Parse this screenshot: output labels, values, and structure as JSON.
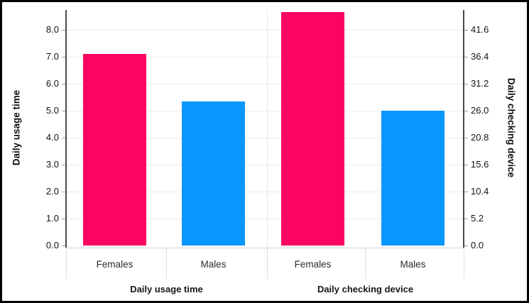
{
  "chart_data": {
    "type": "bar",
    "title": "",
    "legend": "none",
    "grid": true,
    "groups": [
      {
        "label": "Daily usage time",
        "axis": "left",
        "categories": [
          "Females",
          "Males"
        ],
        "values": [
          7.1,
          5.35
        ]
      },
      {
        "label": "Daily checking device",
        "axis": "right",
        "categories": [
          "Females",
          "Males"
        ],
        "values": [
          45,
          26
        ]
      }
    ],
    "left_axis": {
      "title": "Daily usage time",
      "ticks": [
        "0.0",
        "1.0",
        "2.0",
        "3.0",
        "4.0",
        "5.0",
        "6.0",
        "7.0",
        "8.0"
      ],
      "min": 0,
      "max": 8.7
    },
    "right_axis": {
      "title": "Daily checking device",
      "ticks": [
        "0.0",
        "5.2",
        "10.4",
        "15.6",
        "20.8",
        "26.0",
        "31.2",
        "36.4",
        "41.6"
      ],
      "min": 0,
      "max": 45.2
    },
    "colors": {
      "Females": "#FB0563",
      "Males": "#0996FE"
    }
  }
}
